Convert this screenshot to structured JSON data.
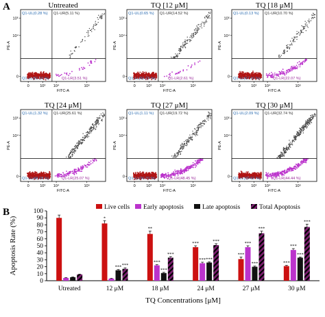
{
  "panel_a": {
    "letter": "A",
    "axis_x": "FITC-A",
    "axis_y": "PE-A",
    "tick_x": [
      "0",
      "10³",
      "10⁴",
      "10⁵"
    ],
    "tick_y": [
      "0",
      "10⁴",
      "10⁵"
    ],
    "plots": [
      {
        "title": "Untreated",
        "ul": "Q1-UL(0.28 %)",
        "ur": "Q1-UR(5.11 %)",
        "ll": "Q1-LL(91.10 %)",
        "lr": "Q1-LR(3.51 %)",
        "early": 3.51,
        "late": 5.11
      },
      {
        "title": "TQ [12 μM]",
        "ul": "Q1-UL(0.65 %)",
        "ur": "Q1-UR(14.52 %)",
        "ll": "Q1-LL(82.22 %)",
        "lr": "Q1-LR(2.61 %)",
        "early": 2.61,
        "late": 14.52
      },
      {
        "title": "TQ [18 μM]",
        "ul": "Q1-UL(0.13 %)",
        "ur": "Q1-UR(10.70 %)",
        "ll": "Q1-LL(67.10 %)",
        "lr": "Q1-LR(22.07 %)",
        "early": 22.07,
        "late": 10.7
      },
      {
        "title": "TQ [24 μM]",
        "ul": "Q1-UL(1.32 %)",
        "ur": "Q1-UR(25.61 %)",
        "ll": "Q1-LL(48.09 %)",
        "lr": "Q1-LR(25.07 %)",
        "early": 25.07,
        "late": 25.61
      },
      {
        "title": "TQ [27 μM]",
        "ul": "Q1-UL(1.11 %)",
        "ur": "Q1-UR(19.72 %)",
        "ll": "Q1-LL(30.72 %)",
        "lr": "Q1-LR(48.45 %)",
        "early": 48.45,
        "late": 19.72
      },
      {
        "title": "TQ [30 μM]",
        "ul": "Q1-UL(2.09 %)",
        "ur": "Q1-UR(32.74 %)",
        "ll": "Q1-LL(20.82 %)",
        "lr": "Q1-LR(44.44 %)",
        "early": 44.44,
        "late": 32.74
      }
    ]
  },
  "panel_b": {
    "letter": "B"
  },
  "colors": {
    "live": "#cc1111",
    "early": "#bb33cc",
    "late": "#111111",
    "total": "#7a1f6e",
    "dots_live": "#b01515",
    "dots_late": "#444444",
    "quad_blue": "#2a6bb0",
    "quad_purple": "#9a2a9a"
  },
  "chart_data": {
    "type": "bar",
    "xlabel": "TQ Concentrations [μM]",
    "ylabel": "Apoptosis Rate (%)",
    "ylim": [
      0,
      100
    ],
    "yticks": [
      0,
      10,
      20,
      30,
      40,
      50,
      60,
      70,
      80,
      90,
      100
    ],
    "categories": [
      "Utreated",
      "12 μM",
      "18 μM",
      "24 μM",
      "27 μM",
      "30 μM"
    ],
    "legend_placement": "top",
    "series": [
      {
        "name": "Live cells",
        "values": [
          90,
          82,
          67,
          48,
          31,
          21
        ],
        "errors": [
          4,
          4,
          4,
          2,
          3,
          1
        ],
        "sig": [
          "",
          "*",
          "**",
          "***",
          "***",
          "***"
        ]
      },
      {
        "name": "Early apoptosis",
        "values": [
          4,
          3,
          22,
          25,
          48,
          44
        ],
        "errors": [
          0.5,
          0.5,
          1,
          1.5,
          2,
          2
        ],
        "sig": [
          "",
          "",
          "***",
          "***",
          "***",
          "***"
        ]
      },
      {
        "name": "Late apoptosis",
        "values": [
          5,
          15,
          11,
          26,
          20,
          33
        ],
        "errors": [
          0.5,
          1,
          1,
          1,
          1,
          1
        ],
        "sig": [
          "",
          "***",
          "***",
          "***",
          "***",
          "***"
        ]
      },
      {
        "name": "Total Apoptosis",
        "values": [
          9,
          17,
          33,
          51,
          68,
          77
        ],
        "errors": [
          0.5,
          1.5,
          1.5,
          2,
          3,
          4
        ],
        "sig": [
          "",
          "***",
          "***",
          "***",
          "***",
          "***"
        ]
      }
    ]
  }
}
